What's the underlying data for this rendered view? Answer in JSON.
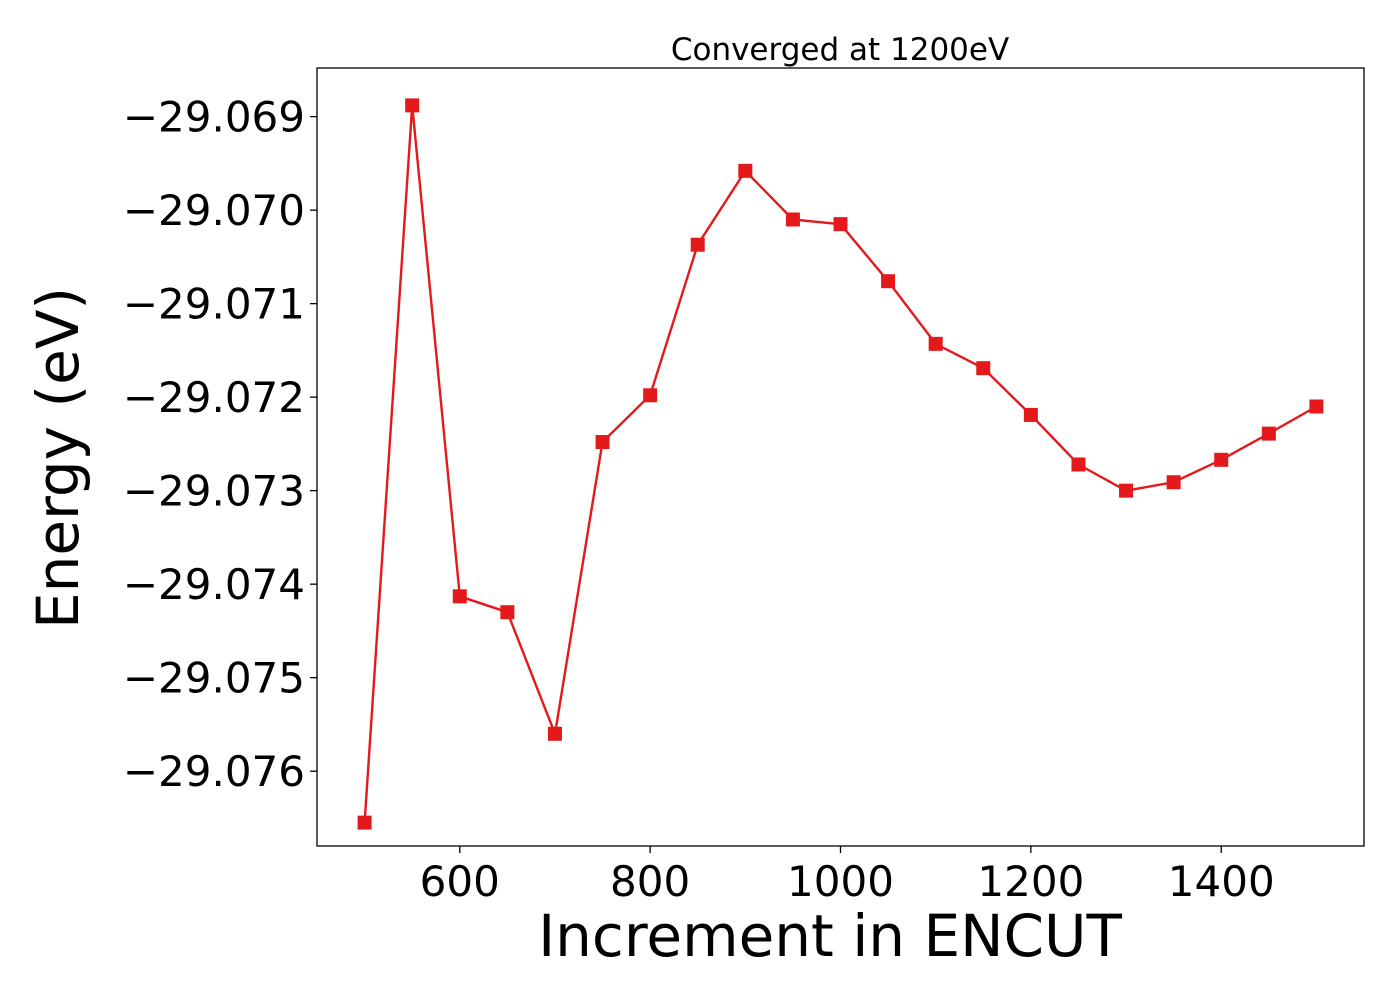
{
  "chart_data": {
    "type": "line",
    "title": "Converged at 1200eV",
    "xlabel": "Increment in ENCUT",
    "ylabel": "Energy (eV)",
    "x": [
      500,
      550,
      600,
      650,
      700,
      750,
      800,
      850,
      900,
      950,
      1000,
      1050,
      1100,
      1150,
      1200,
      1250,
      1300,
      1350,
      1400,
      1450,
      1500
    ],
    "series": [
      {
        "values": [
          -29.07655,
          -29.06888,
          -29.07413,
          -29.0743,
          -29.0756,
          -29.07248,
          -29.07198,
          -29.07037,
          -29.06958,
          -29.0701,
          -29.07015,
          -29.07076,
          -29.07143,
          -29.07169,
          -29.07219,
          -29.07272,
          -29.073,
          -29.07291,
          -29.07267,
          -29.07239,
          -29.0721
        ],
        "color": "#e3191c",
        "marker": "square"
      }
    ],
    "xlim": [
      450,
      1550
    ],
    "ylim": [
      -29.0768,
      -29.06848
    ],
    "xticks": [
      600,
      800,
      1000,
      1200,
      1400
    ],
    "xtick_labels": [
      "600",
      "800",
      "1000",
      "1200",
      "1400"
    ],
    "yticks": [
      -29.069,
      -29.07,
      -29.071,
      -29.072,
      -29.073,
      -29.074,
      -29.075,
      -29.076
    ],
    "ytick_labels": [
      "−29.069",
      "−29.070",
      "−29.071",
      "−29.072",
      "−29.073",
      "−29.074",
      "−29.075",
      "−29.076"
    ],
    "grid": false,
    "legend": "none"
  }
}
